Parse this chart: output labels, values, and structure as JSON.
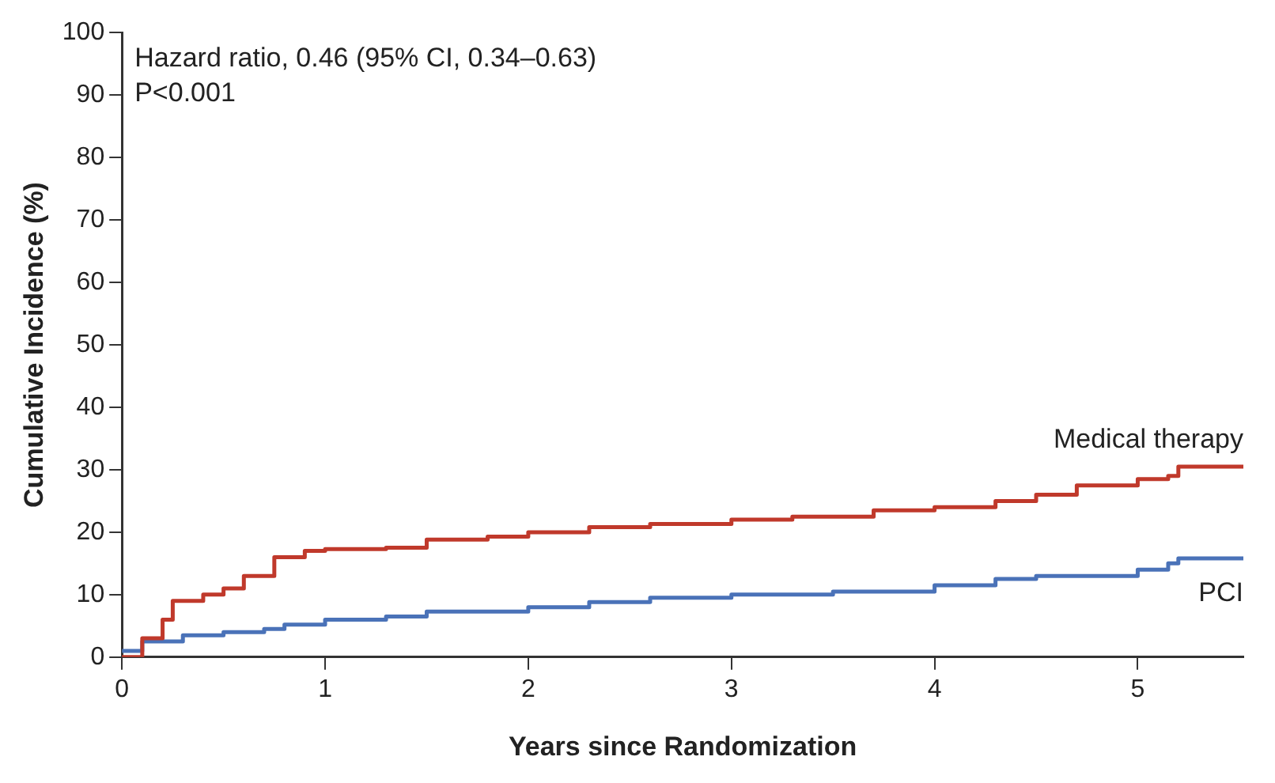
{
  "chart_data": {
    "type": "step",
    "xlabel": "Years since Randomization",
    "ylabel": "Cumulative Incidence (%)",
    "annotations": [
      "Hazard ratio, 0.46 (95% CI, 0.34–0.63)",
      "P<0.001"
    ],
    "xlim": [
      0,
      5.52
    ],
    "xticks": [
      0,
      1,
      2,
      3,
      4,
      5
    ],
    "ylim": [
      0,
      100
    ],
    "yticks": [
      0,
      10,
      20,
      30,
      40,
      50,
      60,
      70,
      80,
      90,
      100
    ],
    "grid": false,
    "legend": false,
    "marker": "none",
    "line_style": "solid",
    "series": [
      {
        "name": "Medical therapy",
        "color": "#c0392b",
        "x": [
          0,
          0.1,
          0.2,
          0.25,
          0.4,
          0.5,
          0.6,
          0.75,
          0.9,
          1,
          1.3,
          1.5,
          1.8,
          2,
          2.3,
          2.6,
          3,
          3.3,
          3.7,
          4,
          4.3,
          4.5,
          4.7,
          5,
          5.15,
          5.2,
          5.52
        ],
        "values": [
          0,
          3,
          6,
          9,
          10,
          11,
          13,
          16,
          17,
          17.3,
          17.5,
          18.8,
          19.3,
          20,
          20.8,
          21.3,
          22,
          22.5,
          23.5,
          24,
          25,
          26,
          27.5,
          28.5,
          29,
          30.5,
          30.5
        ]
      },
      {
        "name": "PCI",
        "color": "#4a72b8",
        "x": [
          0,
          0.1,
          0.3,
          0.5,
          0.7,
          0.8,
          1,
          1.3,
          1.5,
          2,
          2.3,
          2.6,
          3,
          3.5,
          4,
          4.3,
          4.5,
          5,
          5.15,
          5.2,
          5.52
        ],
        "values": [
          1,
          2.5,
          3.5,
          4,
          4.5,
          5.2,
          6,
          6.5,
          7.3,
          8,
          8.8,
          9.5,
          10,
          10.5,
          11.5,
          12.5,
          13,
          14,
          15,
          15.8,
          15.8
        ]
      }
    ]
  }
}
